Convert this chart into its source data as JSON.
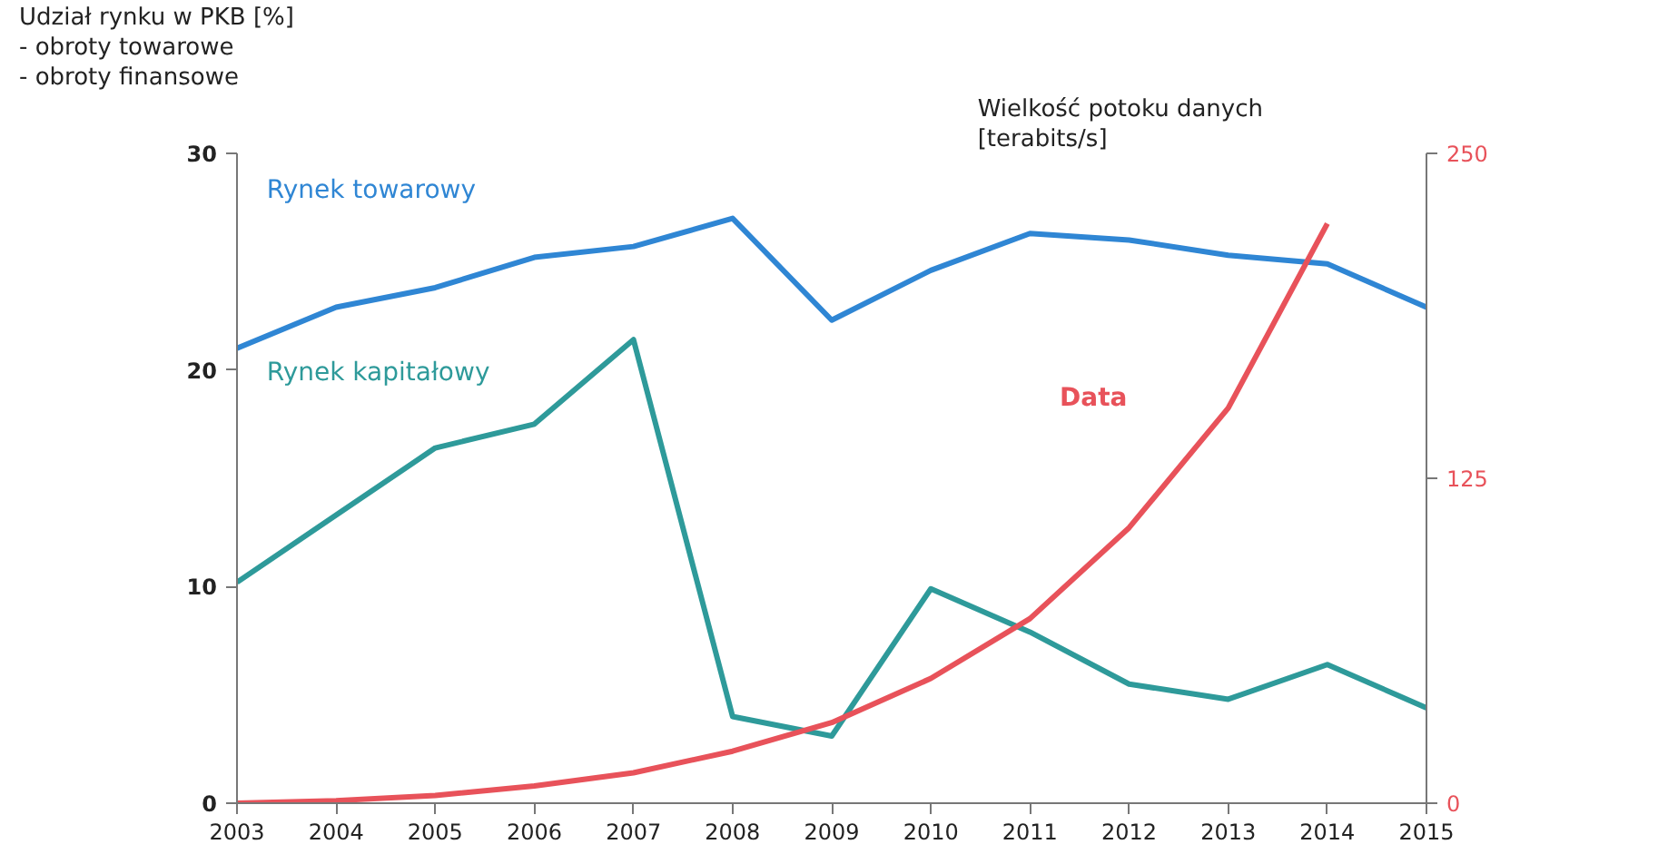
{
  "chart_data": {
    "type": "line",
    "ylabel": "Udział rynku w PKB [%]\n-   obroty towarowe\n-   obroty finansowe",
    "y2label": "Wielkość potoku danych\n[terabits/s]",
    "x": [
      2003,
      2004,
      2005,
      2006,
      2007,
      2008,
      2009,
      2010,
      2011,
      2012,
      2013,
      2014,
      2015
    ],
    "xlim": [
      2003,
      2015
    ],
    "xticks": [
      2003,
      2004,
      2005,
      2006,
      2007,
      2008,
      2009,
      2010,
      2011,
      2012,
      2013,
      2014,
      2015
    ],
    "ylim": [
      0,
      30
    ],
    "yticks": [
      0,
      10,
      20,
      30
    ],
    "y2lim": [
      0,
      250
    ],
    "y2ticks": [
      0,
      125,
      250
    ],
    "grid": false,
    "legend": false,
    "marker": "none",
    "line_style": "solid",
    "series": [
      {
        "name": "Rynek towarowy",
        "color": "#2f86d4",
        "values": [
          21.0,
          22.9,
          23.8,
          25.2,
          25.7,
          27.0,
          22.3,
          24.6,
          26.3,
          26.0,
          25.3,
          24.9,
          22.9
        ]
      },
      {
        "name": "Rynek kapitałowy",
        "color": "#2e9a9a",
        "values": [
          10.2,
          13.3,
          16.4,
          17.5,
          21.4,
          4.0,
          3.1,
          9.9,
          7.9,
          5.5,
          4.8,
          6.4,
          4.4
        ]
      },
      {
        "name": "Data",
        "color": "#e8525a",
        "axis": "y2",
        "values": [
          0,
          1,
          3,
          6.6,
          11.7,
          20,
          31,
          48,
          71,
          106,
          152,
          223,
          null
        ]
      }
    ]
  }
}
